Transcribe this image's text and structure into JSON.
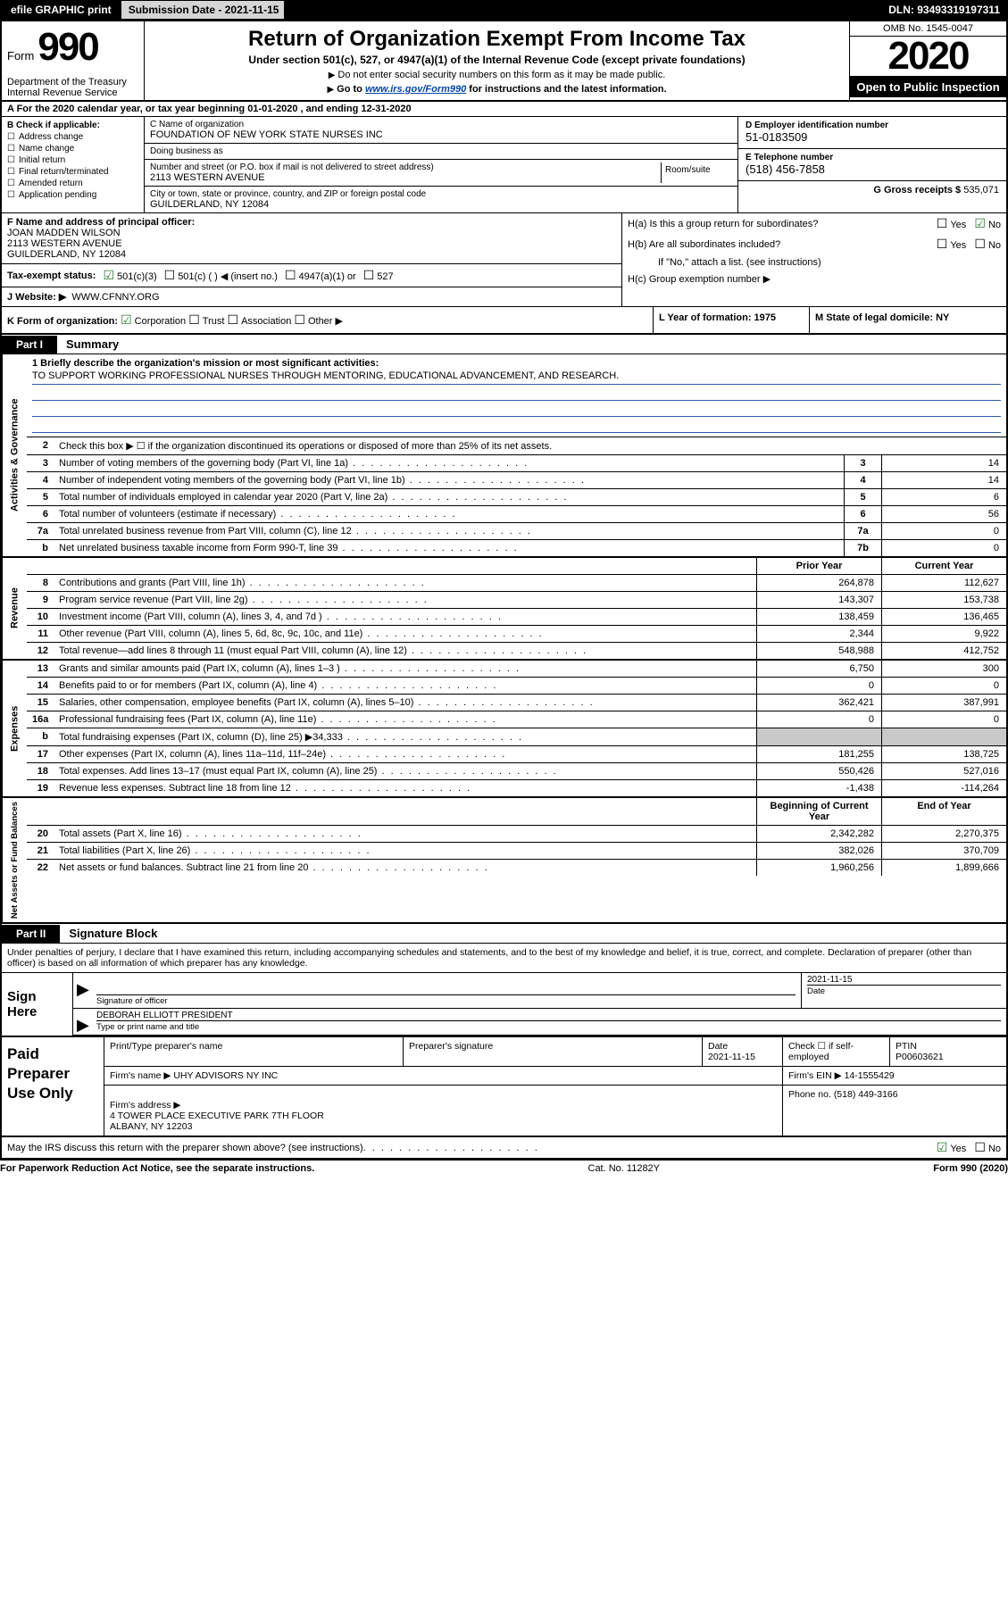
{
  "topbar": {
    "efile": "efile GRAPHIC print",
    "subm_label": "Submission Date - ",
    "subm_date": "2021-11-15",
    "dln_label": "DLN: ",
    "dln": "93493319197311"
  },
  "header": {
    "form_word": "Form",
    "form_num": "990",
    "dept": "Department of the Treasury\nInternal Revenue Service",
    "title": "Return of Organization Exempt From Income Tax",
    "sub": "Under section 501(c), 527, or 4947(a)(1) of the Internal Revenue Code (except private foundations)",
    "note1": "Do not enter social security numbers on this form as it may be made public.",
    "note2_pre": "Go to ",
    "note2_link": "www.irs.gov/Form990",
    "note2_post": " for instructions and the latest information.",
    "omb": "OMB No. 1545-0047",
    "year": "2020",
    "otp": "Open to Public Inspection"
  },
  "rowA": "A   For the 2020 calendar year, or tax year beginning 01-01-2020    , and ending 12-31-2020",
  "checkB": {
    "label": "B Check if applicable:",
    "items": [
      "Address change",
      "Name change",
      "Initial return",
      "Final return/terminated",
      "Amended return",
      "Application pending"
    ]
  },
  "nameblock": {
    "c_label": "C Name of organization",
    "c_val": "FOUNDATION OF NEW YORK STATE NURSES INC",
    "dba_label": "Doing business as",
    "dba_val": "",
    "addr_label": "Number and street (or P.O. box if mail is not delivered to street address)",
    "addr_val": "2113 WESTERN AVENUE",
    "room_label": "Room/suite",
    "city_label": "City or town, state or province, country, and ZIP or foreign postal code",
    "city_val": "GUILDERLAND, NY  12084"
  },
  "rightB": {
    "d_label": "D Employer identification number",
    "d_val": "51-0183509",
    "e_label": "E Telephone number",
    "e_val": "(518) 456-7858",
    "g_label": "G Gross receipts $ ",
    "g_val": "535,071"
  },
  "F": {
    "label": "F  Name and address of principal officer:",
    "name": "JOAN MADDEN WILSON",
    "addr1": "2113 WESTERN AVENUE",
    "addr2": "GUILDERLAND, NY  12084"
  },
  "H": {
    "a": "H(a)  Is this a group return for subordinates?",
    "b": "H(b)  Are all subordinates included?",
    "b_note": "If \"No,\" attach a list. (see instructions)",
    "c": "H(c)  Group exemption number ▶"
  },
  "I": {
    "label": "Tax-exempt status:",
    "opts": [
      "501(c)(3)",
      "501(c) (  ) ◀ (insert no.)",
      "4947(a)(1) or",
      "527"
    ]
  },
  "J": {
    "label": "J   Website: ▶",
    "val": "WWW.CFNNY.ORG"
  },
  "K": {
    "label": "K Form of organization:",
    "opts": [
      "Corporation",
      "Trust",
      "Association",
      "Other ▶"
    ],
    "L": "L Year of formation: 1975",
    "M": "M State of legal domicile: NY"
  },
  "part1": {
    "tab": "Part I",
    "title": "Summary"
  },
  "mission": {
    "q": "1   Briefly describe the organization's mission or most significant activities:",
    "text": "TO SUPPORT WORKING PROFESSIONAL NURSES THROUGH MENTORING, EDUCATIONAL ADVANCEMENT, AND RESEARCH."
  },
  "gov_rows": [
    {
      "n": "2",
      "d": "Check this box ▶ ☐  if the organization discontinued its operations or disposed of more than 25% of its net assets.",
      "num": "",
      "v": ""
    },
    {
      "n": "3",
      "d": "Number of voting members of the governing body (Part VI, line 1a)",
      "num": "3",
      "v": "14"
    },
    {
      "n": "4",
      "d": "Number of independent voting members of the governing body (Part VI, line 1b)",
      "num": "4",
      "v": "14"
    },
    {
      "n": "5",
      "d": "Total number of individuals employed in calendar year 2020 (Part V, line 2a)",
      "num": "5",
      "v": "6"
    },
    {
      "n": "6",
      "d": "Total number of volunteers (estimate if necessary)",
      "num": "6",
      "v": "56"
    },
    {
      "n": "7a",
      "d": "Total unrelated business revenue from Part VIII, column (C), line 12",
      "num": "7a",
      "v": "0"
    },
    {
      "n": "b",
      "d": "Net unrelated business taxable income from Form 990-T, line 39",
      "num": "7b",
      "v": "0"
    }
  ],
  "col_hdrs": {
    "prior": "Prior Year",
    "current": "Current Year"
  },
  "revenue_rows": [
    {
      "n": "8",
      "d": "Contributions and grants (Part VIII, line 1h)",
      "p": "264,878",
      "c": "112,627"
    },
    {
      "n": "9",
      "d": "Program service revenue (Part VIII, line 2g)",
      "p": "143,307",
      "c": "153,738"
    },
    {
      "n": "10",
      "d": "Investment income (Part VIII, column (A), lines 3, 4, and 7d )",
      "p": "138,459",
      "c": "136,465"
    },
    {
      "n": "11",
      "d": "Other revenue (Part VIII, column (A), lines 5, 6d, 8c, 9c, 10c, and 11e)",
      "p": "2,344",
      "c": "9,922"
    },
    {
      "n": "12",
      "d": "Total revenue—add lines 8 through 11 (must equal Part VIII, column (A), line 12)",
      "p": "548,988",
      "c": "412,752"
    }
  ],
  "expense_rows": [
    {
      "n": "13",
      "d": "Grants and similar amounts paid (Part IX, column (A), lines 1–3 )",
      "p": "6,750",
      "c": "300"
    },
    {
      "n": "14",
      "d": "Benefits paid to or for members (Part IX, column (A), line 4)",
      "p": "0",
      "c": "0"
    },
    {
      "n": "15",
      "d": "Salaries, other compensation, employee benefits (Part IX, column (A), lines 5–10)",
      "p": "362,421",
      "c": "387,991"
    },
    {
      "n": "16a",
      "d": "Professional fundraising fees (Part IX, column (A), line 11e)",
      "p": "0",
      "c": "0"
    },
    {
      "n": "b",
      "d": "Total fundraising expenses (Part IX, column (D), line 25) ▶34,333",
      "p": "shade",
      "c": "shade"
    },
    {
      "n": "17",
      "d": "Other expenses (Part IX, column (A), lines 11a–11d, 11f–24e)",
      "p": "181,255",
      "c": "138,725"
    },
    {
      "n": "18",
      "d": "Total expenses. Add lines 13–17 (must equal Part IX, column (A), line 25)",
      "p": "550,426",
      "c": "527,016"
    },
    {
      "n": "19",
      "d": "Revenue less expenses. Subtract line 18 from line 12",
      "p": "-1,438",
      "c": "-114,264"
    }
  ],
  "net_hdrs": {
    "begin": "Beginning of Current Year",
    "end": "End of Year"
  },
  "net_rows": [
    {
      "n": "20",
      "d": "Total assets (Part X, line 16)",
      "p": "2,342,282",
      "c": "2,270,375"
    },
    {
      "n": "21",
      "d": "Total liabilities (Part X, line 26)",
      "p": "382,026",
      "c": "370,709"
    },
    {
      "n": "22",
      "d": "Net assets or fund balances. Subtract line 21 from line 20",
      "p": "1,960,256",
      "c": "1,899,666"
    }
  ],
  "part2": {
    "tab": "Part II",
    "title": "Signature Block"
  },
  "sig": {
    "perjury": "Under penalties of perjury, I declare that I have examined this return, including accompanying schedules and statements, and to the best of my knowledge and belief, it is true, correct, and complete. Declaration of preparer (other than officer) is based on all information of which preparer has any knowledge.",
    "sign_here": "Sign Here",
    "sig_of_officer": "Signature of officer",
    "date": "2021-11-15",
    "date_lbl": "Date",
    "officer_name": "DEBORAH ELLIOTT PRESIDENT",
    "type_name": "Type or print name and title"
  },
  "paid": {
    "label": "Paid Preparer Use Only",
    "h1": "Print/Type preparer's name",
    "h2": "Preparer's signature",
    "h3": "Date",
    "h3v": "2021-11-15",
    "h4": "Check ☐ if self-employed",
    "h5": "PTIN",
    "h5v": "P00603621",
    "firm_name_l": "Firm's name    ▶",
    "firm_name": "UHY ADVISORS NY INC",
    "firm_ein_l": "Firm's EIN ▶",
    "firm_ein": "14-1555429",
    "firm_addr_l": "Firm's address ▶",
    "firm_addr": "4 TOWER PLACE EXECUTIVE PARK 7TH FLOOR\nALBANY, NY  12203",
    "phone_l": "Phone no.",
    "phone": "(518) 449-3166"
  },
  "footer": {
    "discuss": "May the IRS discuss this return with the preparer shown above? (see instructions)",
    "paperwork": "For Paperwork Reduction Act Notice, see the separate instructions.",
    "cat": "Cat. No. 11282Y",
    "form": "Form 990 (2020)"
  },
  "vlabels": {
    "gov": "Activities & Governance",
    "rev": "Revenue",
    "exp": "Expenses",
    "net": "Net Assets or Fund Balances"
  }
}
